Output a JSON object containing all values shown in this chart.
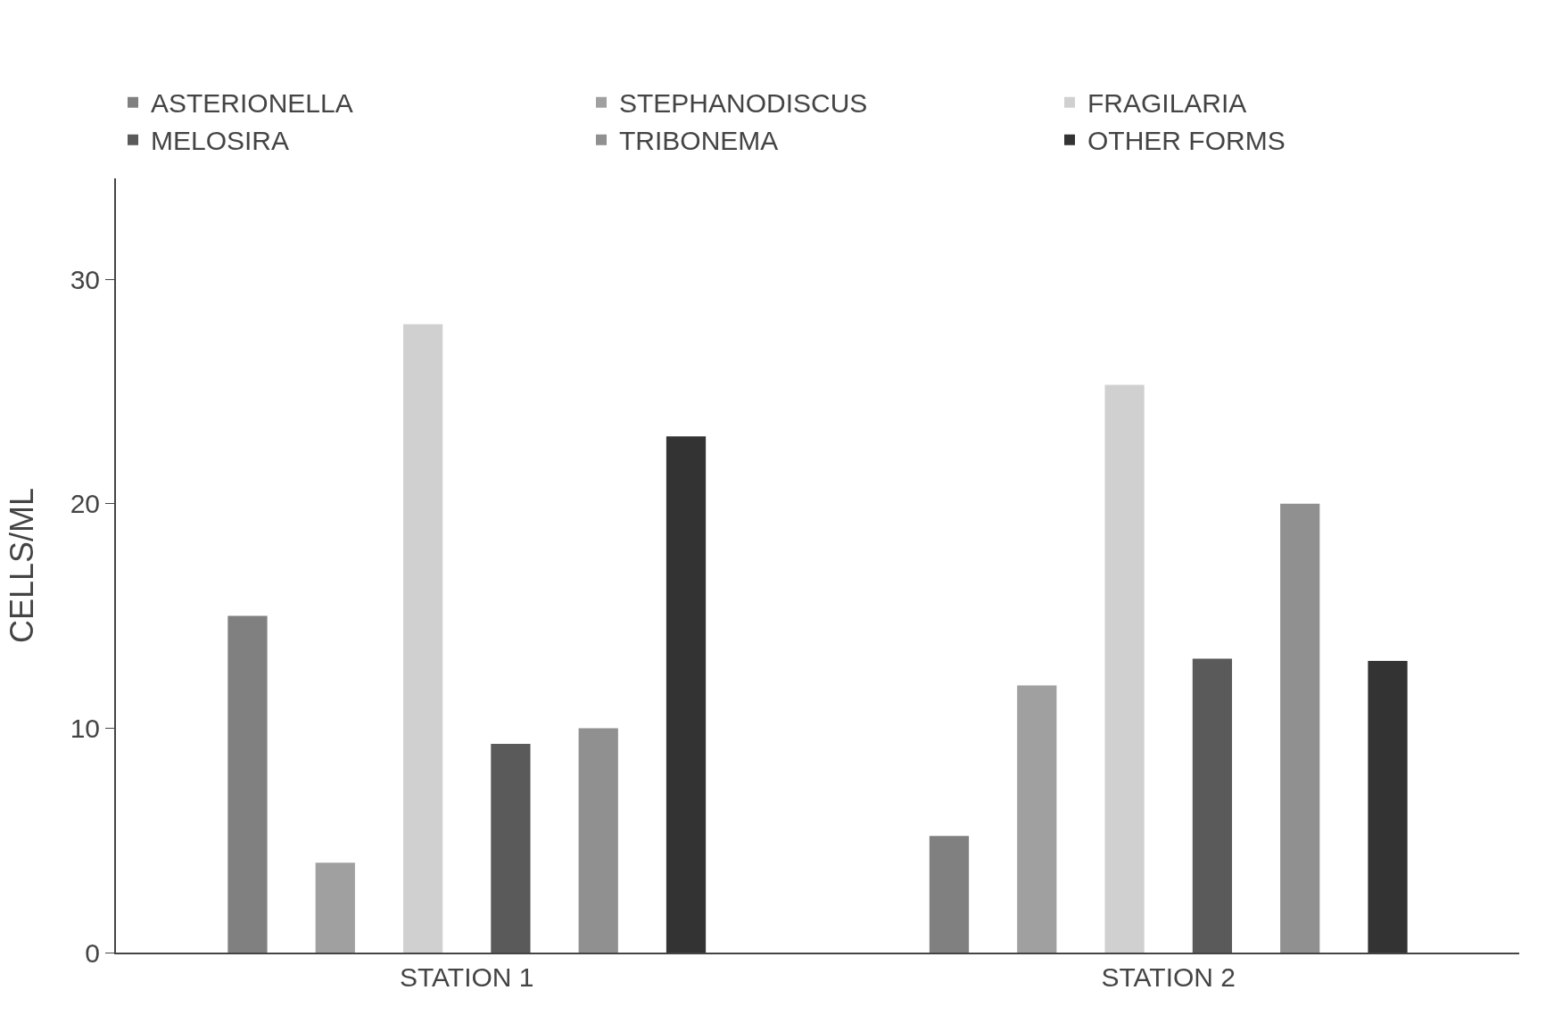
{
  "chart_data": {
    "type": "bar",
    "ylabel": "CELLS/ML",
    "categories": [
      "STATION 1",
      "STATION 2"
    ],
    "series": [
      {
        "name": "ASTERIONELLA",
        "color": "#808080",
        "values": [
          15,
          5.2
        ]
      },
      {
        "name": "STEPHANODISCUS",
        "color": "#a0a0a0",
        "values": [
          4,
          11.9
        ]
      },
      {
        "name": "FRAGILARIA",
        "color": "#d0d0d0",
        "values": [
          28,
          25.3
        ]
      },
      {
        "name": "MELOSIRA",
        "color": "#5a5a5a",
        "values": [
          9.3,
          13.1
        ]
      },
      {
        "name": "TRIBONEMA",
        "color": "#909090",
        "values": [
          10,
          20
        ]
      },
      {
        "name": "OTHER FORMS",
        "color": "#333333",
        "values": [
          23,
          13
        ]
      }
    ],
    "ylim": [
      0,
      34.5
    ],
    "yticks": [
      0,
      10,
      20,
      30
    ],
    "legend": "top"
  }
}
